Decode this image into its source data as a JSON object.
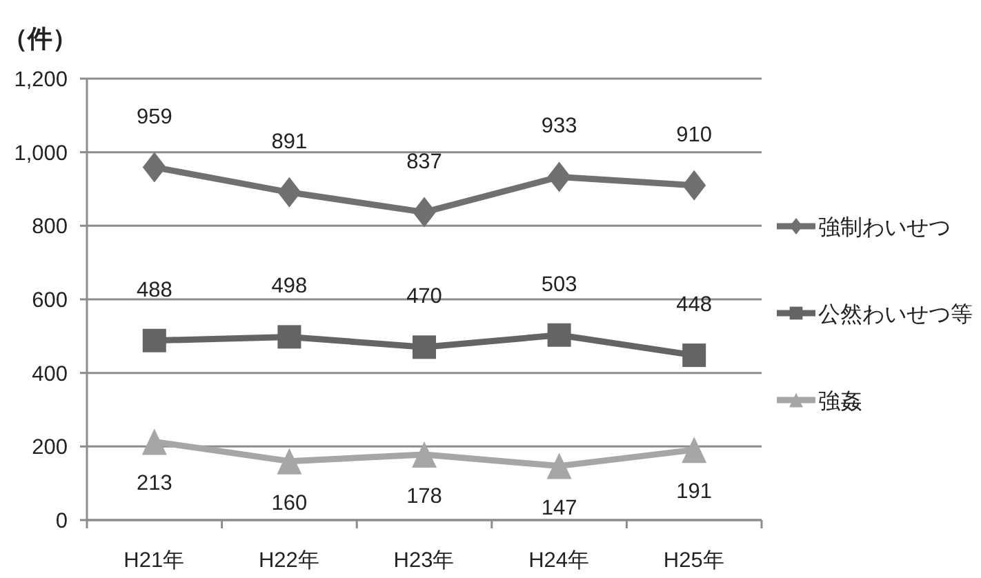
{
  "chart_data": {
    "type": "line",
    "ylabel": "（件）",
    "categories": [
      "H21年",
      "H22年",
      "H23年",
      "H24年",
      "H25年"
    ],
    "series": [
      {
        "name": "強制わいせつ",
        "color": "#707070",
        "marker": "diamond",
        "values": [
          959,
          891,
          837,
          933,
          910
        ]
      },
      {
        "name": "公然わいせつ等",
        "color": "#646464",
        "marker": "square",
        "values": [
          488,
          498,
          470,
          503,
          448
        ]
      },
      {
        "name": "強姦",
        "color": "#a6a6a6",
        "marker": "triangle",
        "values": [
          213,
          160,
          178,
          147,
          191
        ]
      }
    ],
    "ylim": [
      0,
      1200
    ],
    "yticks": [
      0,
      200,
      400,
      600,
      800,
      {
        "value": 1000,
        "label": "1,000"
      },
      {
        "value": 1200,
        "label": "1,200"
      }
    ],
    "grid": "y",
    "legend": "right",
    "data_labels": true
  }
}
